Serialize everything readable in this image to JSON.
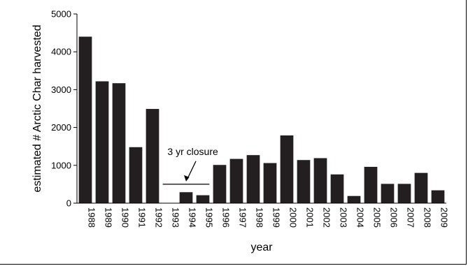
{
  "chart_data": {
    "type": "bar",
    "xlabel": "year",
    "ylabel": "estimated # Arctic Char harvested",
    "ylim": [
      0,
      5000
    ],
    "yticks": [
      0,
      1000,
      2000,
      3000,
      4000,
      5000
    ],
    "grid": false,
    "bar_color": "#231f20",
    "categories": [
      "1988",
      "1989",
      "1990",
      "1991",
      "1992",
      "1993",
      "1994",
      "1995",
      "1996",
      "1997",
      "1998",
      "1999",
      "2000",
      "2001",
      "2002",
      "2003",
      "2004",
      "2005",
      "2006",
      "2007",
      "2008",
      "2009"
    ],
    "values": [
      4400,
      3220,
      3170,
      1480,
      2490,
      0,
      290,
      210,
      1010,
      1170,
      1270,
      1060,
      1790,
      1140,
      1190,
      760,
      190,
      960,
      510,
      510,
      800,
      340
    ],
    "annotations": [
      {
        "text": "3 yr closure",
        "x_start": "1993",
        "x_end": "1995",
        "y": 500,
        "arrow_to": {
          "x": "1994",
          "y": 500
        }
      }
    ]
  }
}
